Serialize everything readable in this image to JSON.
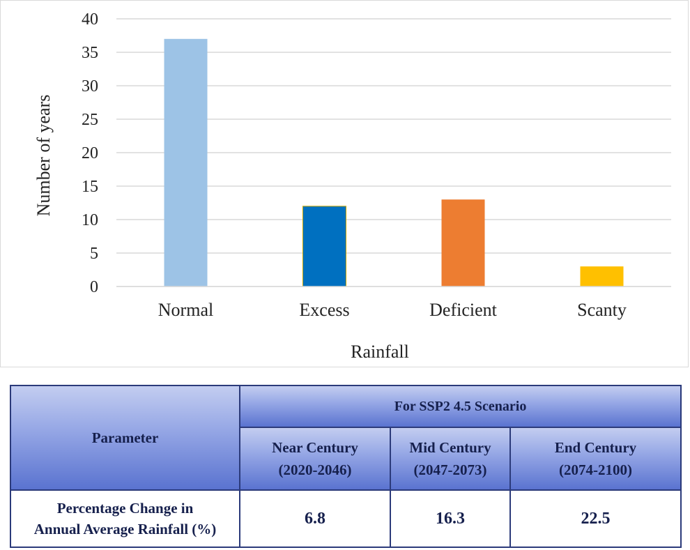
{
  "chart_data": {
    "type": "bar",
    "categories": [
      "Normal",
      "Excess",
      "Deficient",
      "Scanty"
    ],
    "values": [
      37,
      12,
      13,
      3
    ],
    "colors": [
      "#9dc3e6",
      "#0070c0",
      "#ed7d31",
      "#ffc000"
    ],
    "title": "",
    "xlabel": "Rainfall",
    "ylabel": "Number of years",
    "ylim": [
      0,
      40
    ],
    "yticks": [
      0,
      5,
      10,
      15,
      20,
      25,
      30,
      35,
      40
    ],
    "grid": true,
    "legend": "none"
  },
  "table": {
    "parameter_header": "Parameter",
    "scenario_header": "For SSP2 4.5 Scenario",
    "periods": [
      {
        "name": "Near Century",
        "range": "(2020-2046)"
      },
      {
        "name": "Mid Century",
        "range": "(2047-2073)"
      },
      {
        "name": "End Century",
        "range": "(2074-2100)"
      }
    ],
    "row": {
      "label_line1": "Percentage Change in",
      "label_line2": "Annual Average Rainfall (%)",
      "values": [
        "6.8",
        "16.3",
        "22.5"
      ]
    },
    "colors": {
      "border": "#2b3a7a",
      "header_top": "#c3cdf0",
      "header_bottom": "#5a73d0"
    }
  }
}
